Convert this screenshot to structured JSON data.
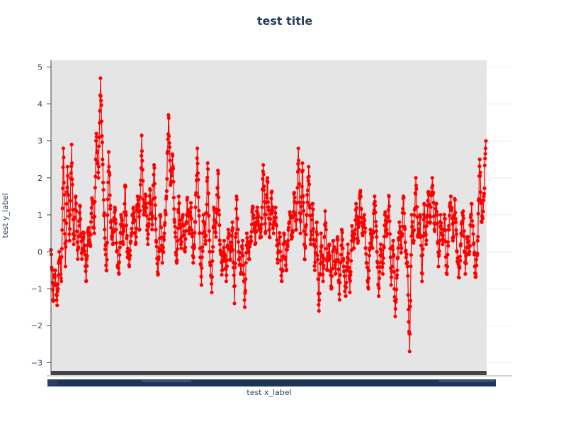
{
  "chart_data": {
    "type": "line",
    "title": "test title",
    "xlabel": "test x_label",
    "ylabel": "test y_label",
    "ylim": [
      -3.35,
      5.15
    ],
    "yticks": [
      -3,
      -2,
      -1,
      0,
      1,
      2,
      3,
      4,
      5
    ],
    "ytick_labels": [
      "−3",
      "−2",
      "−1",
      "0",
      "1",
      "2",
      "3",
      "4",
      "5"
    ],
    "grid": true,
    "legend": "none",
    "series": [
      {
        "color": "#ff0000",
        "marker": "circle",
        "anchors": [
          [
            0,
            0.05
          ],
          [
            1,
            -1.3
          ],
          [
            2,
            -0.5
          ],
          [
            3,
            -1.45
          ],
          [
            4,
            0.0
          ],
          [
            5,
            -0.8
          ],
          [
            6,
            2.8
          ],
          [
            7,
            -0.4
          ],
          [
            8,
            2.3
          ],
          [
            9,
            0.3
          ],
          [
            10,
            2.9
          ],
          [
            11,
            0.2
          ],
          [
            12,
            1.5
          ],
          [
            13,
            -0.2
          ],
          [
            14,
            1.25
          ],
          [
            15,
            -0.2
          ],
          [
            16,
            0.5
          ],
          [
            17,
            -0.8
          ],
          [
            18,
            0.6
          ],
          [
            19,
            0.2
          ],
          [
            20,
            1.4
          ],
          [
            21,
            0.5
          ],
          [
            22,
            3.2
          ],
          [
            23,
            2.0
          ],
          [
            24,
            4.7
          ],
          [
            25,
            2.5
          ],
          [
            26,
            0.6
          ],
          [
            27,
            -0.5
          ],
          [
            28,
            2.7
          ],
          [
            29,
            0.8
          ],
          [
            30,
            0.2
          ],
          [
            31,
            1.2
          ],
          [
            32,
            0.0
          ],
          [
            33,
            -0.6
          ],
          [
            34,
            1.0
          ],
          [
            35,
            0.2
          ],
          [
            36,
            1.8
          ],
          [
            37,
            0.0
          ],
          [
            38,
            -0.4
          ],
          [
            39,
            0.5
          ],
          [
            40,
            1.2
          ],
          [
            41,
            0.2
          ],
          [
            42,
            1.5
          ],
          [
            43,
            0.6
          ],
          [
            44,
            3.15
          ],
          [
            45,
            1.0
          ],
          [
            46,
            1.5
          ],
          [
            47,
            0.2
          ],
          [
            48,
            1.7
          ],
          [
            49,
            0.6
          ],
          [
            50,
            2.35
          ],
          [
            51,
            0.3
          ],
          [
            52,
            -0.6
          ],
          [
            53,
            1.0
          ],
          [
            54,
            -0.3
          ],
          [
            55,
            0.5
          ],
          [
            56,
            1.5
          ],
          [
            57,
            3.7
          ],
          [
            58,
            1.8
          ],
          [
            59,
            2.6
          ],
          [
            60,
            0.8
          ],
          [
            61,
            -0.3
          ],
          [
            62,
            1.5
          ],
          [
            63,
            0.2
          ],
          [
            64,
            1.0
          ],
          [
            65,
            0.0
          ],
          [
            66,
            1.4
          ],
          [
            67,
            0.6
          ],
          [
            68,
            1.2
          ],
          [
            69,
            -0.3
          ],
          [
            70,
            0.8
          ],
          [
            71,
            2.8
          ],
          [
            72,
            0.5
          ],
          [
            73,
            -0.9
          ],
          [
            74,
            1.0
          ],
          [
            75,
            0.3
          ],
          [
            76,
            2.4
          ],
          [
            77,
            0.0
          ],
          [
            78,
            -1.1
          ],
          [
            79,
            1.2
          ],
          [
            80,
            0.4
          ],
          [
            81,
            2.2
          ],
          [
            82,
            0.2
          ],
          [
            83,
            -0.5
          ],
          [
            84,
            0.3
          ],
          [
            85,
            -0.8
          ],
          [
            86,
            0.6
          ],
          [
            87,
            -0.2
          ],
          [
            88,
            0.8
          ],
          [
            89,
            -1.4
          ],
          [
            90,
            1.5
          ],
          [
            91,
            0.0
          ],
          [
            92,
            -0.6
          ],
          [
            93,
            0.3
          ],
          [
            94,
            -1.5
          ],
          [
            95,
            0.5
          ],
          [
            96,
            -0.2
          ],
          [
            97,
            0.4
          ],
          [
            98,
            1.2
          ],
          [
            99,
            0.2
          ],
          [
            100,
            1.1
          ],
          [
            101,
            0.6
          ],
          [
            102,
            0.4
          ],
          [
            103,
            2.35
          ],
          [
            104,
            0.5
          ],
          [
            105,
            2.0
          ],
          [
            106,
            0.4
          ],
          [
            107,
            1.6
          ],
          [
            108,
            0.5
          ],
          [
            109,
            1.2
          ],
          [
            110,
            -0.3
          ],
          [
            111,
            0.4
          ],
          [
            112,
            -0.8
          ],
          [
            113,
            0.5
          ],
          [
            114,
            -0.5
          ],
          [
            115,
            0.3
          ],
          [
            116,
            1.0
          ],
          [
            117,
            0.4
          ],
          [
            118,
            1.6
          ],
          [
            119,
            0.6
          ],
          [
            120,
            2.8
          ],
          [
            121,
            0.5
          ],
          [
            122,
            2.4
          ],
          [
            123,
            -0.2
          ],
          [
            124,
            1.0
          ],
          [
            125,
            2.3
          ],
          [
            126,
            0.2
          ],
          [
            127,
            1.3
          ],
          [
            128,
            -0.5
          ],
          [
            129,
            0.8
          ],
          [
            130,
            -1.6
          ],
          [
            131,
            0.5
          ],
          [
            132,
            -0.8
          ],
          [
            133,
            1.1
          ],
          [
            134,
            -0.5
          ],
          [
            135,
            0.2
          ],
          [
            136,
            -1.0
          ],
          [
            137,
            0.3
          ],
          [
            138,
            -0.6
          ],
          [
            139,
            0.4
          ],
          [
            140,
            -1.3
          ],
          [
            141,
            0.6
          ],
          [
            142,
            -0.4
          ],
          [
            143,
            -1.2
          ],
          [
            144,
            0.2
          ],
          [
            145,
            -1.1
          ],
          [
            146,
            0.7
          ],
          [
            147,
            0.1
          ],
          [
            148,
            1.3
          ],
          [
            149,
            0.3
          ],
          [
            150,
            1.6
          ],
          [
            151,
            0.5
          ],
          [
            152,
            1.0
          ],
          [
            153,
            -0.3
          ],
          [
            154,
            -1.0
          ],
          [
            155,
            0.6
          ],
          [
            156,
            0.1
          ],
          [
            157,
            1.5
          ],
          [
            158,
            0.4
          ],
          [
            159,
            -1.2
          ],
          [
            160,
            0.2
          ],
          [
            161,
            -0.6
          ],
          [
            162,
            1.0
          ],
          [
            163,
            0.5
          ],
          [
            164,
            1.5
          ],
          [
            165,
            -0.9
          ],
          [
            166,
            0.3
          ],
          [
            167,
            -1.75
          ],
          [
            168,
            -0.5
          ],
          [
            169,
            0.8
          ],
          [
            170,
            0.1
          ],
          [
            171,
            1.5
          ],
          [
            172,
            0.0
          ],
          [
            173,
            -0.4
          ],
          [
            174,
            -2.7
          ],
          [
            175,
            1.0
          ],
          [
            176,
            0.3
          ],
          [
            177,
            2.0
          ],
          [
            178,
            0.4
          ],
          [
            179,
            1.0
          ],
          [
            180,
            -0.8
          ],
          [
            181,
            1.3
          ],
          [
            182,
            0.2
          ],
          [
            183,
            1.6
          ],
          [
            184,
            0.8
          ],
          [
            185,
            2.0
          ],
          [
            186,
            0.6
          ],
          [
            187,
            1.3
          ],
          [
            188,
            -0.4
          ],
          [
            189,
            1.0
          ],
          [
            190,
            0.2
          ],
          [
            191,
            0.9
          ],
          [
            192,
            -0.6
          ],
          [
            193,
            0.7
          ],
          [
            194,
            1.5
          ],
          [
            195,
            0.3
          ],
          [
            196,
            1.4
          ],
          [
            197,
            0.0
          ],
          [
            198,
            -0.7
          ],
          [
            199,
            0.5
          ],
          [
            200,
            1.1
          ],
          [
            201,
            -0.6
          ],
          [
            202,
            0.4
          ],
          [
            203,
            0.0
          ],
          [
            204,
            1.3
          ],
          [
            205,
            0.2
          ],
          [
            206,
            -0.6
          ],
          [
            207,
            0.3
          ],
          [
            208,
            2.5
          ],
          [
            209,
            0.8
          ],
          [
            210,
            1.5
          ],
          [
            211,
            3.0
          ]
        ]
      }
    ]
  }
}
